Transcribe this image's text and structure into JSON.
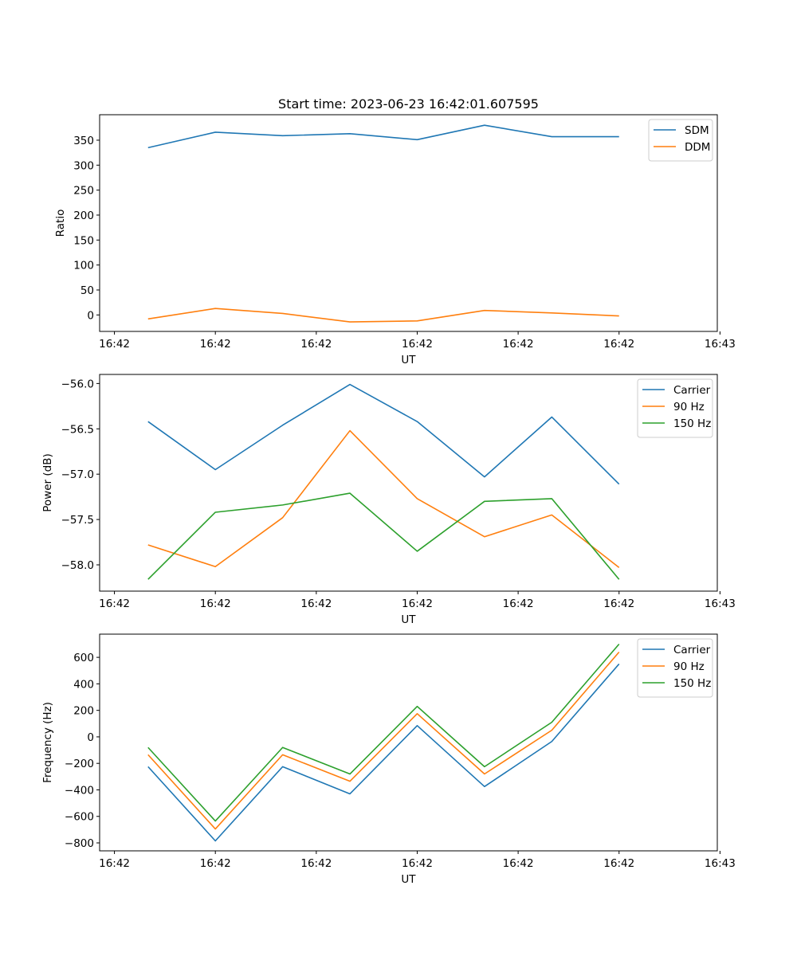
{
  "figure_title": "Start time: 2023-06-23 16:42:01.607595",
  "colors": {
    "blue": "#1f77b4",
    "orange": "#ff7f0e",
    "green": "#2ca02c"
  },
  "chart_data": [
    {
      "type": "line",
      "title": "Start time: 2023-06-23 16:42:01.607595",
      "xlabel": "UT",
      "ylabel": "Ratio",
      "x": [
        1,
        2,
        3,
        4,
        5,
        6,
        7,
        8
      ],
      "xlim": [
        0.28,
        9.46
      ],
      "x_ticks": [
        0.5,
        2,
        3.5,
        5,
        6.5,
        8,
        9.5
      ],
      "x_tick_labels": [
        "16:42",
        "16:42",
        "16:42",
        "16:42",
        "16:42",
        "16:42",
        "16:43"
      ],
      "ylim": [
        -33,
        401
      ],
      "y_ticks": [
        0,
        50,
        100,
        150,
        200,
        250,
        300,
        350
      ],
      "y_tick_labels": [
        "0",
        "50",
        "100",
        "150",
        "200",
        "250",
        "300",
        "350"
      ],
      "legend_position": "top-right",
      "grid": false,
      "series": [
        {
          "name": "SDM",
          "color": "#1f77b4",
          "values": [
            335,
            366,
            359,
            363,
            351,
            380,
            357,
            357
          ]
        },
        {
          "name": "DDM",
          "color": "#ff7f0e",
          "values": [
            -8,
            13,
            3,
            -14,
            -12,
            9,
            4,
            -2
          ]
        }
      ]
    },
    {
      "type": "line",
      "title": "",
      "xlabel": "UT",
      "ylabel": "Power (dB)",
      "x": [
        1,
        2,
        3,
        4,
        5,
        6,
        7,
        8
      ],
      "xlim": [
        0.28,
        9.46
      ],
      "x_ticks": [
        0.5,
        2,
        3.5,
        5,
        6.5,
        8,
        9.5
      ],
      "x_tick_labels": [
        "16:42",
        "16:42",
        "16:42",
        "16:42",
        "16:42",
        "16:42",
        "16:43"
      ],
      "ylim": [
        -58.29,
        -55.9
      ],
      "y_ticks": [
        -58.0,
        -57.5,
        -57.0,
        -56.5,
        -56.0
      ],
      "y_tick_labels": [
        "−58.0",
        "−57.5",
        "−57.0",
        "−56.5",
        "−56.0"
      ],
      "legend_position": "top-right",
      "grid": false,
      "series": [
        {
          "name": "Carrier",
          "color": "#1f77b4",
          "values": [
            -56.42,
            -56.95,
            -56.46,
            -56.01,
            -56.42,
            -57.03,
            -56.37,
            -57.11
          ]
        },
        {
          "name": "90 Hz",
          "color": "#ff7f0e",
          "values": [
            -57.78,
            -58.02,
            -57.48,
            -56.52,
            -57.27,
            -57.69,
            -57.45,
            -58.03
          ]
        },
        {
          "name": "150 Hz",
          "color": "#2ca02c",
          "values": [
            -58.16,
            -57.42,
            -57.34,
            -57.21,
            -57.85,
            -57.3,
            -57.27,
            -58.16
          ]
        }
      ]
    },
    {
      "type": "line",
      "title": "",
      "xlabel": "UT",
      "ylabel": "Frequency (Hz)",
      "x": [
        1,
        2,
        3,
        4,
        5,
        6,
        7,
        8
      ],
      "xlim": [
        0.28,
        9.46
      ],
      "x_ticks": [
        0.5,
        2,
        3.5,
        5,
        6.5,
        8,
        9.5
      ],
      "x_tick_labels": [
        "16:42",
        "16:42",
        "16:42",
        "16:42",
        "16:42",
        "16:42",
        "16:43"
      ],
      "ylim": [
        -860,
        775
      ],
      "y_ticks": [
        -800,
        -600,
        -400,
        -200,
        0,
        200,
        400,
        600
      ],
      "y_tick_labels": [
        "−800",
        "−600",
        "−400",
        "−200",
        "0",
        "200",
        "400",
        "600"
      ],
      "legend_position": "top-right",
      "grid": false,
      "series": [
        {
          "name": "Carrier",
          "color": "#1f77b4",
          "values": [
            -225,
            -785,
            -225,
            -430,
            85,
            -375,
            -35,
            550
          ]
        },
        {
          "name": "90 Hz",
          "color": "#ff7f0e",
          "values": [
            -135,
            -695,
            -135,
            -335,
            175,
            -280,
            50,
            640
          ]
        },
        {
          "name": "150 Hz",
          "color": "#2ca02c",
          "values": [
            -80,
            -635,
            -80,
            -280,
            230,
            -225,
            110,
            700
          ]
        }
      ]
    }
  ]
}
